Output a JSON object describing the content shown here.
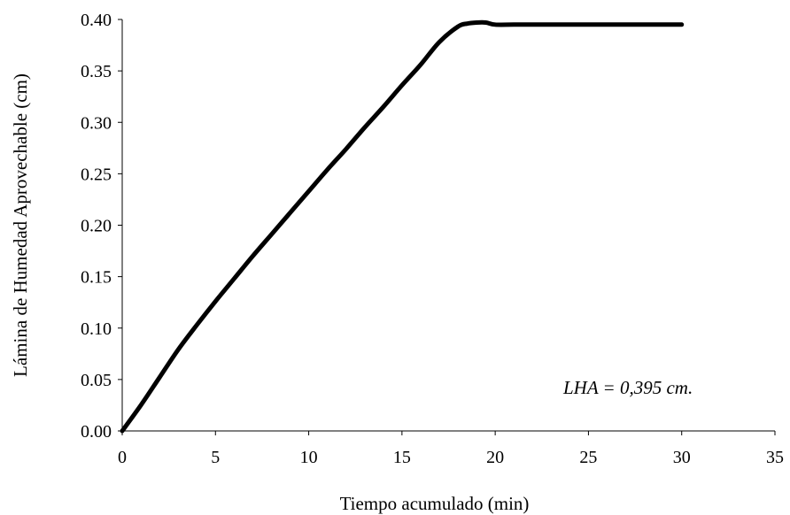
{
  "chart_data": {
    "type": "line",
    "title": "",
    "xlabel": "Tiempo acumulado (min)",
    "ylabel": "Lámina de Humedad Aprovechable (cm)",
    "xlim": [
      0,
      35
    ],
    "ylim": [
      0,
      0.4
    ],
    "xticks": [
      0,
      5,
      10,
      15,
      20,
      25,
      30,
      35
    ],
    "yticks": [
      "0.00",
      "0.05",
      "0.10",
      "0.15",
      "0.20",
      "0.25",
      "0.30",
      "0.35",
      "0.40"
    ],
    "grid": false,
    "legend": "none",
    "annotation": "LHA = 0,395 cm.",
    "series": [
      {
        "color": "#000000",
        "x": [
          0,
          1,
          2,
          3,
          4,
          5,
          6,
          7,
          8,
          9,
          10,
          11,
          12,
          13,
          14,
          15,
          16,
          17,
          18,
          18.5,
          19,
          19.5,
          20,
          21,
          22,
          23,
          24,
          25,
          26,
          27,
          28,
          29,
          30
        ],
        "y": [
          0,
          0.025,
          0.052,
          0.079,
          0.103,
          0.126,
          0.148,
          0.17,
          0.191,
          0.212,
          0.233,
          0.254,
          0.274,
          0.295,
          0.315,
          0.336,
          0.356,
          0.378,
          0.393,
          0.396,
          0.397,
          0.397,
          0.395,
          0.395,
          0.395,
          0.395,
          0.395,
          0.395,
          0.395,
          0.395,
          0.395,
          0.395,
          0.395
        ]
      }
    ]
  }
}
